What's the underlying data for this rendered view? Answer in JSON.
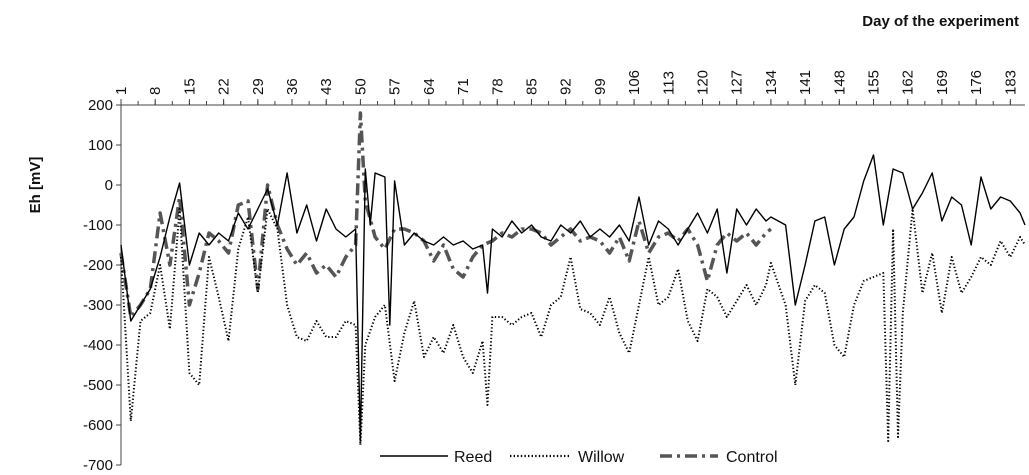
{
  "chart_data": {
    "type": "line",
    "title": "",
    "xlabel": "Day of the experiment",
    "ylabel": "Eh [mV]",
    "xlim": [
      1,
      186
    ],
    "ylim": [
      -700,
      200
    ],
    "x_ticks": [
      "1",
      "8",
      "15",
      "22",
      "29",
      "36",
      "43",
      "50",
      "57",
      "64",
      "71",
      "78",
      "85",
      "92",
      "99",
      "106",
      "113",
      "120",
      "127",
      "134",
      "141",
      "148",
      "155",
      "162",
      "169",
      "176",
      "183"
    ],
    "y_ticks": [
      "200",
      "100",
      "0",
      "-100",
      "-200",
      "-300",
      "-400",
      "-500",
      "-600",
      "-700"
    ],
    "grid": false,
    "legend_position": "bottom",
    "series": [
      {
        "name": "Reed",
        "style": "solid",
        "color": "#000000",
        "points": [
          [
            1,
            -150
          ],
          [
            3,
            -340
          ],
          [
            5,
            -300
          ],
          [
            7,
            -260
          ],
          [
            9,
            -180
          ],
          [
            11,
            -80
          ],
          [
            13,
            5
          ],
          [
            15,
            -200
          ],
          [
            17,
            -120
          ],
          [
            19,
            -150
          ],
          [
            21,
            -120
          ],
          [
            23,
            -140
          ],
          [
            25,
            -70
          ],
          [
            27,
            -110
          ],
          [
            29,
            -60
          ],
          [
            31,
            -10
          ],
          [
            33,
            -100
          ],
          [
            35,
            30
          ],
          [
            37,
            -120
          ],
          [
            39,
            -50
          ],
          [
            41,
            -140
          ],
          [
            43,
            -60
          ],
          [
            45,
            -110
          ],
          [
            47,
            -130
          ],
          [
            49,
            -110
          ],
          [
            50,
            -640
          ],
          [
            51,
            40
          ],
          [
            52,
            -100
          ],
          [
            53,
            30
          ],
          [
            55,
            20
          ],
          [
            56,
            -350
          ],
          [
            57,
            10
          ],
          [
            59,
            -150
          ],
          [
            61,
            -120
          ],
          [
            63,
            -140
          ],
          [
            65,
            -150
          ],
          [
            67,
            -130
          ],
          [
            69,
            -150
          ],
          [
            71,
            -140
          ],
          [
            73,
            -160
          ],
          [
            75,
            -150
          ],
          [
            76,
            -270
          ],
          [
            77,
            -110
          ],
          [
            79,
            -130
          ],
          [
            81,
            -90
          ],
          [
            83,
            -120
          ],
          [
            85,
            -100
          ],
          [
            87,
            -130
          ],
          [
            89,
            -140
          ],
          [
            91,
            -100
          ],
          [
            93,
            -120
          ],
          [
            95,
            -90
          ],
          [
            97,
            -130
          ],
          [
            99,
            -110
          ],
          [
            101,
            -130
          ],
          [
            103,
            -100
          ],
          [
            105,
            -140
          ],
          [
            107,
            -30
          ],
          [
            109,
            -150
          ],
          [
            111,
            -90
          ],
          [
            113,
            -110
          ],
          [
            115,
            -150
          ],
          [
            117,
            -110
          ],
          [
            119,
            -70
          ],
          [
            121,
            -120
          ],
          [
            123,
            -60
          ],
          [
            125,
            -220
          ],
          [
            127,
            -60
          ],
          [
            129,
            -100
          ],
          [
            131,
            -60
          ],
          [
            133,
            -90
          ],
          [
            134,
            -80
          ],
          [
            137,
            -100
          ],
          [
            139,
            -300
          ],
          [
            141,
            -200
          ],
          [
            143,
            -90
          ],
          [
            145,
            -80
          ],
          [
            147,
            -200
          ],
          [
            149,
            -110
          ],
          [
            151,
            -80
          ],
          [
            153,
            10
          ],
          [
            155,
            75
          ],
          [
            157,
            -100
          ],
          [
            159,
            40
          ],
          [
            161,
            30
          ],
          [
            163,
            -60
          ],
          [
            165,
            -20
          ],
          [
            167,
            30
          ],
          [
            169,
            -90
          ],
          [
            171,
            -30
          ],
          [
            173,
            -50
          ],
          [
            175,
            -150
          ],
          [
            177,
            20
          ],
          [
            179,
            -60
          ],
          [
            181,
            -30
          ],
          [
            183,
            -40
          ],
          [
            185,
            -70
          ],
          [
            186,
            -100
          ]
        ]
      },
      {
        "name": "Willow",
        "style": "dotted",
        "color": "#000000",
        "points": [
          [
            1,
            -180
          ],
          [
            3,
            -590
          ],
          [
            5,
            -340
          ],
          [
            7,
            -320
          ],
          [
            9,
            -200
          ],
          [
            11,
            -360
          ],
          [
            13,
            -60
          ],
          [
            15,
            -470
          ],
          [
            17,
            -500
          ],
          [
            19,
            -180
          ],
          [
            21,
            -280
          ],
          [
            23,
            -390
          ],
          [
            25,
            -160
          ],
          [
            27,
            -80
          ],
          [
            29,
            -270
          ],
          [
            31,
            -60
          ],
          [
            33,
            -110
          ],
          [
            35,
            -300
          ],
          [
            37,
            -380
          ],
          [
            39,
            -390
          ],
          [
            41,
            -340
          ],
          [
            43,
            -380
          ],
          [
            45,
            -380
          ],
          [
            47,
            -340
          ],
          [
            49,
            -350
          ],
          [
            50,
            -650
          ],
          [
            51,
            -400
          ],
          [
            53,
            -330
          ],
          [
            55,
            -300
          ],
          [
            57,
            -490
          ],
          [
            59,
            -370
          ],
          [
            61,
            -290
          ],
          [
            63,
            -430
          ],
          [
            65,
            -380
          ],
          [
            67,
            -420
          ],
          [
            69,
            -350
          ],
          [
            71,
            -430
          ],
          [
            73,
            -470
          ],
          [
            75,
            -390
          ],
          [
            76,
            -550
          ],
          [
            77,
            -330
          ],
          [
            79,
            -330
          ],
          [
            81,
            -350
          ],
          [
            83,
            -330
          ],
          [
            85,
            -320
          ],
          [
            87,
            -380
          ],
          [
            89,
            -300
          ],
          [
            91,
            -280
          ],
          [
            93,
            -180
          ],
          [
            95,
            -310
          ],
          [
            97,
            -320
          ],
          [
            99,
            -350
          ],
          [
            101,
            -280
          ],
          [
            103,
            -370
          ],
          [
            105,
            -420
          ],
          [
            107,
            -300
          ],
          [
            109,
            -180
          ],
          [
            111,
            -300
          ],
          [
            113,
            -280
          ],
          [
            115,
            -210
          ],
          [
            117,
            -340
          ],
          [
            119,
            -390
          ],
          [
            121,
            -260
          ],
          [
            123,
            -280
          ],
          [
            125,
            -330
          ],
          [
            127,
            -290
          ],
          [
            129,
            -250
          ],
          [
            131,
            -300
          ],
          [
            133,
            -250
          ],
          [
            134,
            -195
          ],
          [
            137,
            -300
          ],
          [
            139,
            -500
          ],
          [
            141,
            -290
          ],
          [
            143,
            -250
          ],
          [
            145,
            -270
          ],
          [
            147,
            -400
          ],
          [
            149,
            -430
          ],
          [
            151,
            -300
          ],
          [
            153,
            -240
          ],
          [
            155,
            -230
          ],
          [
            157,
            -220
          ],
          [
            158,
            -640
          ],
          [
            159,
            -110
          ],
          [
            160,
            -630
          ],
          [
            161,
            -320
          ],
          [
            163,
            -60
          ],
          [
            165,
            -270
          ],
          [
            167,
            -170
          ],
          [
            169,
            -320
          ],
          [
            171,
            -180
          ],
          [
            173,
            -270
          ],
          [
            175,
            -230
          ],
          [
            177,
            -180
          ],
          [
            179,
            -200
          ],
          [
            181,
            -140
          ],
          [
            183,
            -180
          ],
          [
            185,
            -130
          ],
          [
            186,
            -150
          ]
        ]
      },
      {
        "name": "Control",
        "style": "dash-dot",
        "color": "#555555",
        "points": [
          [
            1,
            -170
          ],
          [
            3,
            -330
          ],
          [
            5,
            -300
          ],
          [
            7,
            -260
          ],
          [
            9,
            -70
          ],
          [
            11,
            -200
          ],
          [
            13,
            -30
          ],
          [
            15,
            -300
          ],
          [
            17,
            -220
          ],
          [
            19,
            -120
          ],
          [
            21,
            -140
          ],
          [
            23,
            -170
          ],
          [
            25,
            -50
          ],
          [
            27,
            -40
          ],
          [
            29,
            -260
          ],
          [
            31,
            0
          ],
          [
            33,
            -100
          ],
          [
            35,
            -160
          ],
          [
            37,
            -200
          ],
          [
            39,
            -170
          ],
          [
            41,
            -220
          ],
          [
            43,
            -200
          ],
          [
            45,
            -230
          ],
          [
            47,
            -180
          ],
          [
            49,
            -150
          ],
          [
            50,
            180
          ],
          [
            51,
            -40
          ],
          [
            53,
            -130
          ],
          [
            55,
            -160
          ],
          [
            57,
            -110
          ],
          [
            59,
            -110
          ],
          [
            61,
            -120
          ],
          [
            63,
            -140
          ],
          [
            65,
            -190
          ],
          [
            67,
            -150
          ],
          [
            69,
            -210
          ],
          [
            71,
            -230
          ],
          [
            73,
            -180
          ],
          [
            75,
            -150
          ],
          [
            77,
            -140
          ],
          [
            79,
            -120
          ],
          [
            81,
            -130
          ],
          [
            83,
            -110
          ],
          [
            85,
            -110
          ],
          [
            87,
            -120
          ],
          [
            89,
            -150
          ],
          [
            91,
            -130
          ],
          [
            93,
            -110
          ],
          [
            95,
            -140
          ],
          [
            97,
            -130
          ],
          [
            99,
            -140
          ],
          [
            101,
            -170
          ],
          [
            103,
            -130
          ],
          [
            105,
            -190
          ],
          [
            107,
            -90
          ],
          [
            109,
            -170
          ],
          [
            111,
            -130
          ],
          [
            113,
            -120
          ],
          [
            115,
            -140
          ],
          [
            117,
            -110
          ],
          [
            119,
            -150
          ],
          [
            121,
            -240
          ],
          [
            123,
            -150
          ],
          [
            125,
            -120
          ],
          [
            127,
            -140
          ],
          [
            129,
            -120
          ],
          [
            131,
            -150
          ],
          [
            133,
            -120
          ],
          [
            134,
            -110
          ]
        ]
      }
    ]
  }
}
